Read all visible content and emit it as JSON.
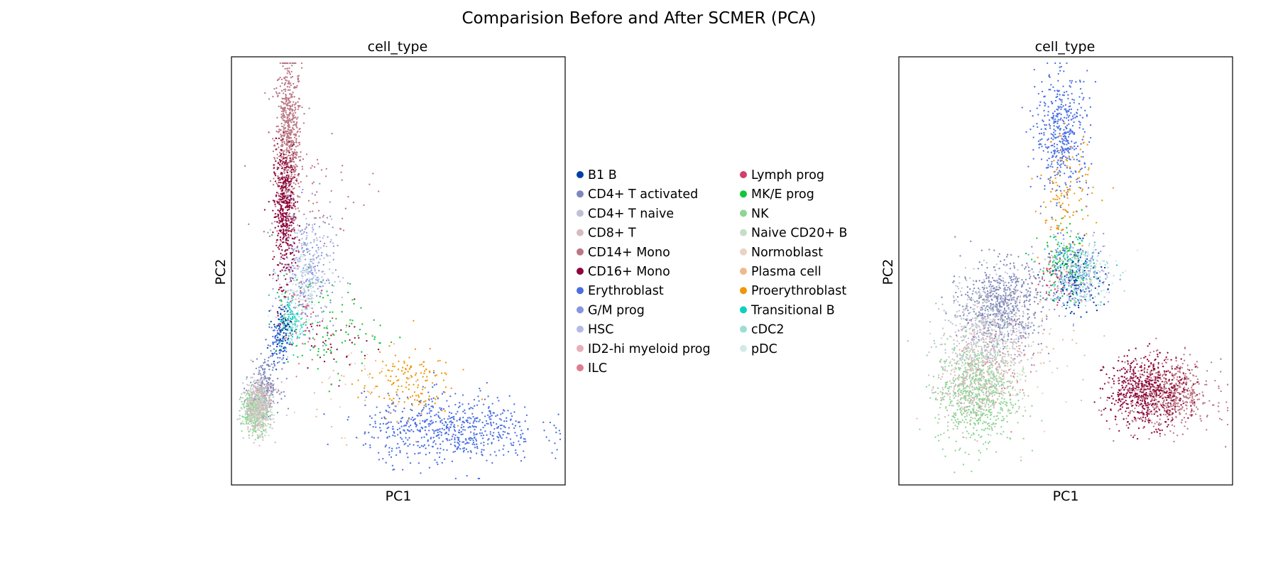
{
  "figure": {
    "title": "Comparision Before and After SCMER (PCA)"
  },
  "colors": {
    "B1 B": "#023fa5",
    "CD4+ T activated": "#7d87b9",
    "CD4+ T naive": "#bec1d4",
    "CD8+ T": "#d6bcc0",
    "CD14+ Mono": "#bb7784",
    "CD16+ Mono": "#8e063b",
    "Erythroblast": "#4a6fe3",
    "G/M prog": "#8595e1",
    "HSC": "#b5bbe3",
    "ID2-hi myeloid prog": "#e6afb9",
    "ILC": "#e07b91",
    "Lymph prog": "#d33f6a",
    "MK/E prog": "#11c638",
    "NK": "#8dd593",
    "Naive CD20+ B": "#c6dec7",
    "Normoblast": "#ead3c6",
    "Plasma cell": "#f0b98d",
    "Proerythroblast": "#ef9708",
    "Transitional B": "#0fcfc0",
    "cDC2": "#9cded6",
    "pDC": "#d5eae7"
  },
  "legend": {
    "column1": [
      "B1 B",
      "CD4+ T activated",
      "CD4+ T naive",
      "CD8+ T",
      "CD14+ Mono",
      "CD16+ Mono",
      "Erythroblast",
      "G/M prog",
      "HSC",
      "ID2-hi myeloid prog",
      "ILC"
    ],
    "column2": [
      "Lymph prog",
      "MK/E prog",
      "NK",
      "Naive CD20+ B",
      "Normoblast",
      "Plasma cell",
      "Proerythroblast",
      "Transitional B",
      "cDC2",
      "pDC"
    ]
  },
  "chart_data": [
    {
      "type": "scatter",
      "title": "cell_type",
      "xlabel": "PC1",
      "ylabel": "PC2",
      "xlim": [
        0,
        100
      ],
      "ylim": [
        0,
        100
      ],
      "ticks": "none",
      "clusters": [
        {
          "label": "CD14+ Mono",
          "center": [
            17,
            80
          ],
          "spread": [
            2,
            10
          ],
          "n": 700
        },
        {
          "label": "CD14+ Mono",
          "center": [
            25,
            68
          ],
          "spread": [
            8,
            6
          ],
          "n": 60
        },
        {
          "label": "CD16+ Mono",
          "center": [
            16,
            63
          ],
          "spread": [
            1.6,
            8
          ],
          "n": 450
        },
        {
          "label": "CD16+ Mono",
          "center": [
            30,
            33
          ],
          "spread": [
            6,
            4
          ],
          "n": 40
        },
        {
          "label": "G/M prog",
          "center": [
            23,
            50
          ],
          "spread": [
            4,
            7
          ],
          "n": 200
        },
        {
          "label": "HSC",
          "center": [
            22,
            50
          ],
          "spread": [
            4,
            6
          ],
          "n": 180
        },
        {
          "label": "pDC",
          "center": [
            21,
            47
          ],
          "spread": [
            3,
            5
          ],
          "n": 120
        },
        {
          "label": "Transitional B",
          "center": [
            18,
            38
          ],
          "spread": [
            2,
            3
          ],
          "n": 90
        },
        {
          "label": "cDC2",
          "center": [
            18,
            38
          ],
          "spread": [
            2,
            3
          ],
          "n": 70
        },
        {
          "label": "B1 B",
          "center": [
            15,
            36
          ],
          "spread": [
            1.5,
            3
          ],
          "n": 90
        },
        {
          "label": "Erythroblast",
          "center": [
            14,
            33
          ],
          "spread": [
            1.5,
            3
          ],
          "n": 60
        },
        {
          "label": "MK/E prog",
          "center": [
            28,
            37
          ],
          "spread": [
            8,
            6
          ],
          "n": 100
        },
        {
          "label": "Proerythroblast",
          "center": [
            52,
            24
          ],
          "spread": [
            7,
            4
          ],
          "n": 150
        },
        {
          "label": "Erythroblast",
          "center": [
            66,
            13
          ],
          "spread": [
            13,
            4
          ],
          "n": 650
        },
        {
          "label": "CD4+ T activated",
          "center": [
            10,
            23
          ],
          "spread": [
            2.2,
            3
          ],
          "n": 220
        },
        {
          "label": "CD4+ T naive",
          "center": [
            8,
            19
          ],
          "spread": [
            2,
            3
          ],
          "n": 220
        },
        {
          "label": "NK",
          "center": [
            7,
            17
          ],
          "spread": [
            2,
            2.5
          ],
          "n": 280
        },
        {
          "label": "CD8+ T",
          "center": [
            8,
            18
          ],
          "spread": [
            2,
            3
          ],
          "n": 200
        },
        {
          "label": "Naive CD20+ B",
          "center": [
            8,
            17
          ],
          "spread": [
            2,
            2.5
          ],
          "n": 130
        },
        {
          "label": "ID2-hi myeloid prog",
          "center": [
            9,
            20
          ],
          "spread": [
            2.5,
            3
          ],
          "n": 60
        },
        {
          "label": "Plasma cell",
          "center": [
            40,
            20
          ],
          "spread": [
            12,
            6
          ],
          "n": 25
        },
        {
          "label": "Normoblast",
          "center": [
            30,
            25
          ],
          "spread": [
            10,
            6
          ],
          "n": 25
        },
        {
          "label": "Lymph prog",
          "center": [
            22,
            40
          ],
          "spread": [
            4,
            4
          ],
          "n": 25
        },
        {
          "label": "ILC",
          "center": [
            18,
            35
          ],
          "spread": [
            4,
            5
          ],
          "n": 20
        }
      ]
    },
    {
      "type": "scatter",
      "title": "cell_type",
      "xlabel": "PC1",
      "ylabel": "PC2",
      "xlim": [
        0,
        100
      ],
      "ylim": [
        0,
        100
      ],
      "ticks": "none",
      "clusters": [
        {
          "label": "Erythroblast",
          "center": [
            49,
            82
          ],
          "spread": [
            4,
            7
          ],
          "n": 450
        },
        {
          "label": "Proerythroblast",
          "center": [
            50,
            67
          ],
          "spread": [
            4,
            7
          ],
          "n": 130
        },
        {
          "label": "MK/E prog",
          "center": [
            50,
            51
          ],
          "spread": [
            4,
            4
          ],
          "n": 120
        },
        {
          "label": "Transitional B",
          "center": [
            51,
            51
          ],
          "spread": [
            4,
            4
          ],
          "n": 90
        },
        {
          "label": "B1 B",
          "center": [
            54,
            48
          ],
          "spread": [
            4,
            4
          ],
          "n": 150
        },
        {
          "label": "Lymph prog",
          "center": [
            47,
            48
          ],
          "spread": [
            3,
            3
          ],
          "n": 50
        },
        {
          "label": "G/M prog",
          "center": [
            54,
            49
          ],
          "spread": [
            5,
            4
          ],
          "n": 120
        },
        {
          "label": "HSC",
          "center": [
            52,
            49
          ],
          "spread": [
            5,
            4
          ],
          "n": 120
        },
        {
          "label": "cDC2",
          "center": [
            54,
            50
          ],
          "spread": [
            5,
            4
          ],
          "n": 80
        },
        {
          "label": "pDC",
          "center": [
            55,
            50
          ],
          "spread": [
            5,
            4
          ],
          "n": 80
        },
        {
          "label": "CD4+ T activated",
          "center": [
            31,
            42
          ],
          "spread": [
            6,
            5
          ],
          "n": 600
        },
        {
          "label": "CD4+ T naive",
          "center": [
            27,
            37
          ],
          "spread": [
            6,
            6
          ],
          "n": 500
        },
        {
          "label": "CD8+ T",
          "center": [
            22,
            23
          ],
          "spread": [
            5,
            5
          ],
          "n": 350
        },
        {
          "label": "NK",
          "center": [
            23,
            21
          ],
          "spread": [
            6,
            6
          ],
          "n": 600
        },
        {
          "label": "Naive CD20+ B",
          "center": [
            27,
            30
          ],
          "spread": [
            6,
            6
          ],
          "n": 200
        },
        {
          "label": "ID2-hi myeloid prog",
          "center": [
            28,
            32
          ],
          "spread": [
            6,
            6
          ],
          "n": 100
        },
        {
          "label": "ILC",
          "center": [
            30,
            28
          ],
          "spread": [
            6,
            5
          ],
          "n": 40
        },
        {
          "label": "CD14+ Mono",
          "center": [
            80,
            21
          ],
          "spread": [
            7,
            4
          ],
          "n": 650
        },
        {
          "label": "CD16+ Mono",
          "center": [
            74,
            22
          ],
          "spread": [
            6,
            4
          ],
          "n": 500
        },
        {
          "label": "Normoblast",
          "center": [
            35,
            30
          ],
          "spread": [
            8,
            8
          ],
          "n": 40
        },
        {
          "label": "Plasma cell",
          "center": [
            45,
            35
          ],
          "spread": [
            8,
            8
          ],
          "n": 30
        }
      ]
    }
  ]
}
